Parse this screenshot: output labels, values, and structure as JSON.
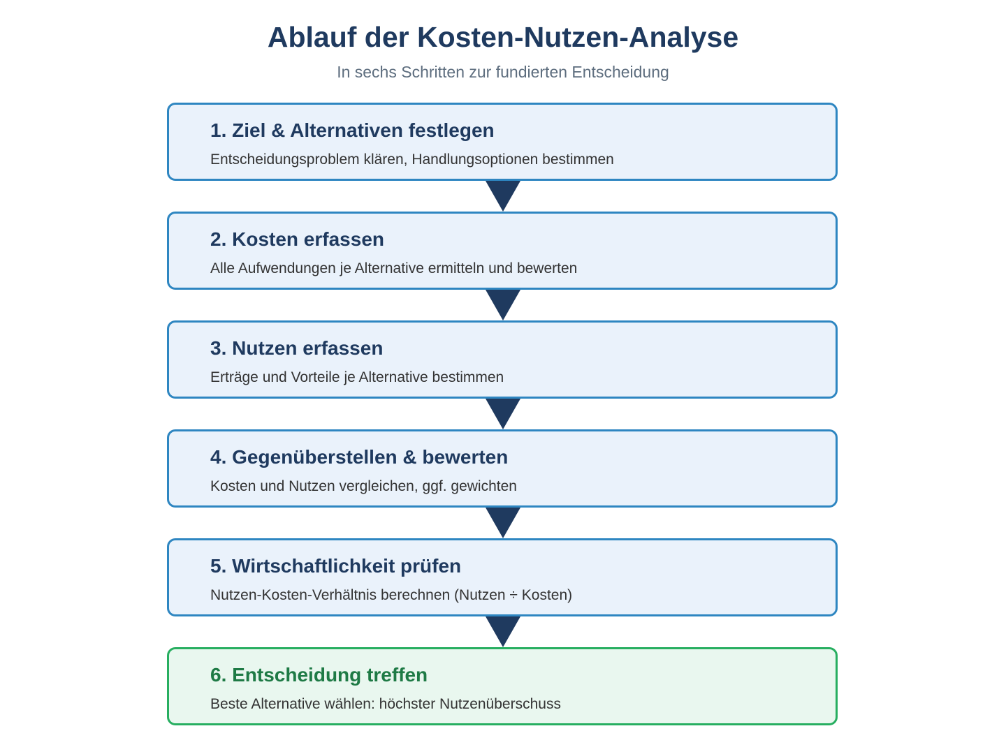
{
  "header": {
    "title": "Ablauf der Kosten-Nutzen-Analyse",
    "subtitle": "In sechs Schritten zur fundierten Entscheidung"
  },
  "steps": [
    {
      "title": "1. Ziel & Alternativen festlegen",
      "description": "Entscheidungsproblem klären, Handlungsoptionen bestimmen"
    },
    {
      "title": "2. Kosten erfassen",
      "description": "Alle Aufwendungen je Alternative ermitteln und bewerten"
    },
    {
      "title": "3. Nutzen erfassen",
      "description": "Erträge und Vorteile je Alternative bestimmen"
    },
    {
      "title": "4. Gegenüberstellen & bewerten",
      "description": "Kosten und Nutzen vergleichen, ggf. gewichten"
    },
    {
      "title": "5. Wirtschaftlichkeit prüfen",
      "description": "Nutzen-Kosten-Verhältnis berechnen (Nutzen ÷ Kosten)"
    },
    {
      "title": "6. Entscheidung treffen",
      "description": "Beste Alternative wählen: höchster Nutzenüberschuss"
    }
  ],
  "colors": {
    "step_border": "#2e86c1",
    "step_fill": "#eaf2fb",
    "final_border": "#27ae60",
    "final_fill": "#e9f7ef",
    "arrow": "#1f3a5f",
    "title": "#1f3a5f"
  }
}
